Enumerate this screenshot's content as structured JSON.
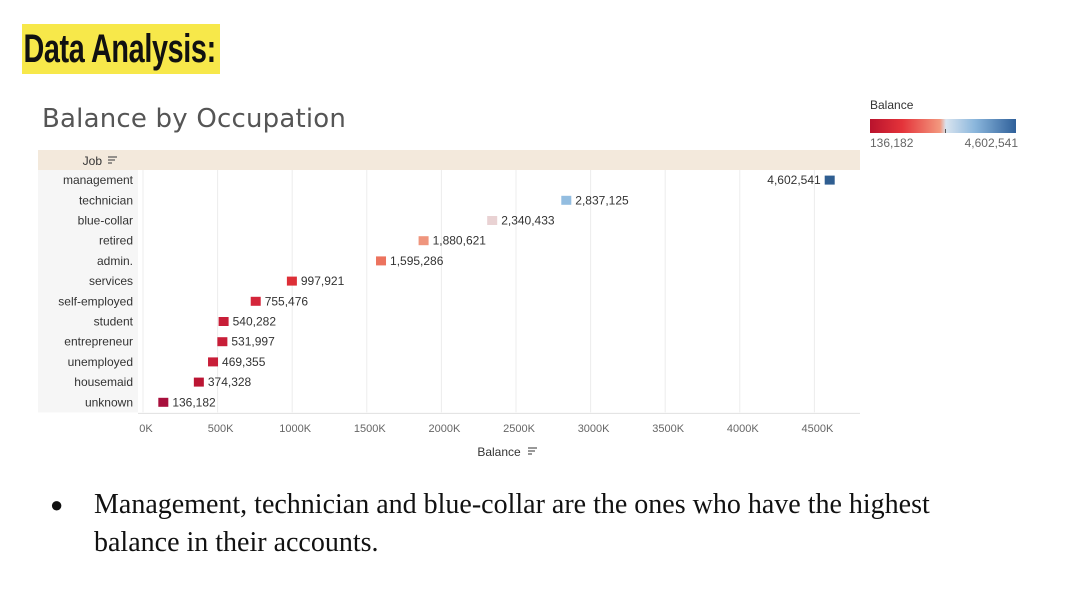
{
  "slide": {
    "title": "Data Analysis:",
    "bullet_text": "Management, technician and blue-collar are the ones who have the highest balance in their accounts."
  },
  "chart_data": {
    "type": "bar",
    "title": "Balance by Occupation",
    "ylabel": "Job",
    "xlabel": "Balance",
    "categories": [
      "management",
      "technician",
      "blue-collar",
      "retired",
      "admin.",
      "services",
      "self-employed",
      "student",
      "entrepreneur",
      "unemployed",
      "housemaid",
      "unknown"
    ],
    "values": [
      4602541,
      2837125,
      2340433,
      1880621,
      1595286,
      997921,
      755476,
      540282,
      531997,
      469355,
      374328,
      136182
    ],
    "value_labels": [
      "4,602,541",
      "2,837,125",
      "2,340,433",
      "1,880,621",
      "1,595,286",
      "997,921",
      "755,476",
      "540,282",
      "531,997",
      "469,355",
      "374,328",
      "136,182"
    ],
    "marker_colors": [
      "#2f5e91",
      "#93bde0",
      "#e9d2d3",
      "#ef957d",
      "#ec735e",
      "#dd2f37",
      "#d4253a",
      "#c81e38",
      "#c81e38",
      "#c81e38",
      "#bb1533",
      "#a80f3c"
    ],
    "xticks": [
      0,
      500000,
      1000000,
      1500000,
      2000000,
      2500000,
      3000000,
      3500000,
      4000000,
      4500000
    ],
    "xtick_labels": [
      "0K",
      "500K",
      "1000K",
      "1500K",
      "2000K",
      "2500K",
      "3000K",
      "3500K",
      "4000K",
      "4500K"
    ],
    "xlim": [
      0,
      4750000
    ],
    "grid": "vertical",
    "legend": {
      "title": "Balance",
      "min_label": "136,182",
      "max_label": "4,602,541",
      "placement": "top-right"
    }
  }
}
